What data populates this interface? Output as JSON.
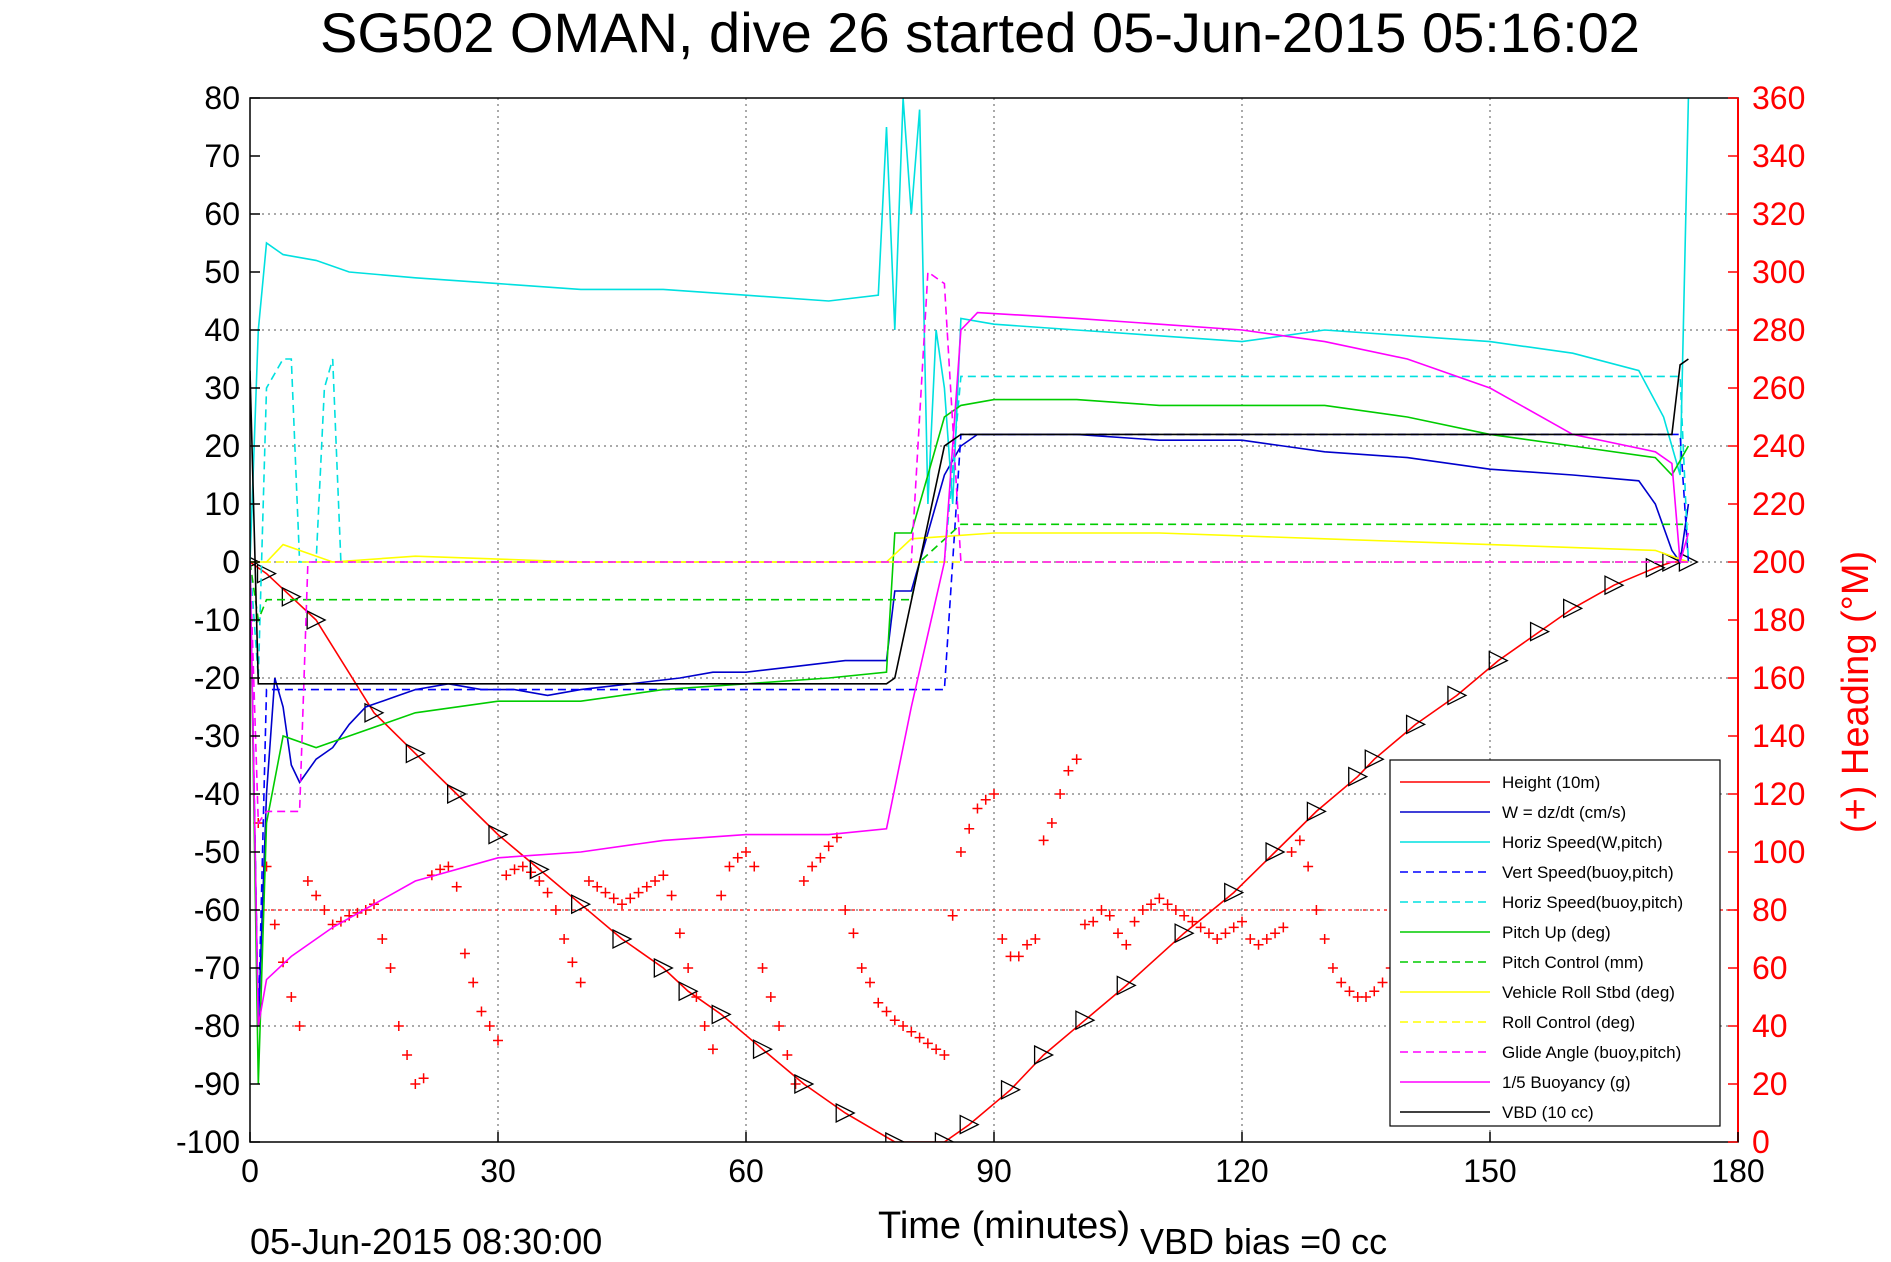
{
  "chart_data": {
    "type": "line",
    "title": "SG502 OMAN, dive 26 started 05-Jun-2015 05:16:02",
    "xlabel": "Time (minutes)",
    "ylabel_right": "(+) Heading (°M)",
    "footer_left": "05-Jun-2015 08:30:00",
    "footer_right": "VBD bias =0 cc",
    "xlim": [
      0,
      180
    ],
    "ylim": [
      -100,
      80
    ],
    "y2lim": [
      0,
      360
    ],
    "x_ticks": [
      "0",
      "30",
      "60",
      "90",
      "120",
      "150",
      "180"
    ],
    "y_ticks": [
      "-100",
      "-90",
      "-80",
      "-70",
      "-60",
      "-50",
      "-40",
      "-30",
      "-20",
      "-10",
      "0",
      "10",
      "20",
      "30",
      "40",
      "50",
      "60",
      "70",
      "80"
    ],
    "y2_ticks": [
      "0",
      "20",
      "40",
      "60",
      "80",
      "100",
      "120",
      "140",
      "160",
      "180",
      "200",
      "220",
      "240",
      "260",
      "280",
      "300",
      "320",
      "340",
      "360"
    ],
    "grid": true,
    "legend_position": "bottom-right",
    "series": [
      {
        "name": "Height (10m)",
        "color": "#ff0000",
        "style": "solid",
        "marker": "triangle",
        "x": [
          0,
          2,
          5,
          8,
          15,
          20,
          25,
          30,
          35,
          40,
          45,
          50,
          53,
          57,
          62,
          67,
          72,
          78,
          84,
          87,
          92,
          96,
          101,
          106,
          113,
          119,
          124,
          129,
          134,
          136,
          141,
          146,
          151,
          156,
          160,
          165,
          170,
          172,
          174
        ],
        "y": [
          0,
          -2,
          -6,
          -10,
          -26,
          -33,
          -40,
          -47,
          -53,
          -59,
          -65,
          -70,
          -74,
          -78,
          -84,
          -90,
          -95,
          -100,
          -100,
          -97,
          -91,
          -85,
          -79,
          -73,
          -64,
          -57,
          -50,
          -43,
          -37,
          -34,
          -28,
          -23,
          -17,
          -12,
          -8,
          -4,
          -1,
          0,
          0
        ]
      },
      {
        "name": "W = dz/dt (cm/s)",
        "color": "#0000cc",
        "style": "solid",
        "x": [
          0,
          1,
          2,
          3,
          4,
          5,
          6,
          8,
          10,
          12,
          14,
          16,
          18,
          20,
          24,
          28,
          32,
          36,
          40,
          46,
          52,
          56,
          60,
          66,
          72,
          77,
          78,
          80,
          82,
          84,
          86,
          88,
          95,
          100,
          110,
          120,
          125,
          130,
          140,
          150,
          160,
          168,
          170,
          172,
          173,
          174
        ],
        "y": [
          0,
          -80,
          -40,
          -20,
          -25,
          -35,
          -38,
          -34,
          -32,
          -28,
          -25,
          -24,
          -23,
          -22,
          -21,
          -22,
          -22,
          -23,
          -22,
          -21,
          -20,
          -19,
          -19,
          -18,
          -17,
          -17,
          -5,
          -5,
          5,
          15,
          20,
          22,
          22,
          22,
          21,
          21,
          20,
          19,
          18,
          16,
          15,
          14,
          10,
          2,
          0,
          10
        ]
      },
      {
        "name": "Horiz Speed(W,pitch)",
        "color": "#00e0e0",
        "style": "solid",
        "x": [
          0,
          1,
          2,
          4,
          8,
          12,
          20,
          30,
          40,
          50,
          60,
          70,
          76,
          77,
          78,
          79,
          80,
          81,
          82,
          83,
          84,
          85,
          86,
          90,
          100,
          110,
          120,
          130,
          140,
          150,
          160,
          168,
          171,
          173,
          174
        ],
        "y": [
          0,
          40,
          55,
          53,
          52,
          50,
          49,
          48,
          47,
          47,
          46,
          45,
          46,
          75,
          40,
          80,
          60,
          78,
          10,
          40,
          30,
          10,
          42,
          41,
          40,
          39,
          38,
          40,
          39,
          38,
          36,
          33,
          25,
          15,
          80
        ]
      },
      {
        "name": "Vert Speed(buoy,pitch)",
        "color": "#0000ff",
        "style": "dashed",
        "x": [
          0,
          1,
          2,
          3,
          84,
          86,
          173,
          174
        ],
        "y": [
          0,
          -80,
          -22,
          -22,
          -22,
          22,
          22,
          0
        ]
      },
      {
        "name": "Horiz Speed(buoy,pitch)",
        "color": "#00e0e0",
        "style": "dashed",
        "x": [
          0,
          1,
          2,
          4,
          5,
          6,
          8,
          9,
          10,
          11,
          12,
          14,
          84,
          86,
          173,
          174
        ],
        "y": [
          0,
          -20,
          30,
          35,
          35,
          0,
          0,
          30,
          35,
          0,
          0,
          0,
          0,
          32,
          32,
          0
        ]
      },
      {
        "name": "Pitch Up (deg)",
        "color": "#00cc00",
        "style": "solid",
        "x": [
          0,
          1,
          2,
          4,
          8,
          12,
          16,
          20,
          30,
          40,
          50,
          60,
          70,
          77,
          78,
          80,
          82,
          84,
          86,
          90,
          100,
          110,
          120,
          130,
          140,
          150,
          160,
          170,
          172,
          174
        ],
        "y": [
          0,
          -90,
          -45,
          -30,
          -32,
          -30,
          -28,
          -26,
          -24,
          -24,
          -22,
          -21,
          -20,
          -19,
          5,
          5,
          15,
          25,
          27,
          28,
          28,
          27,
          27,
          27,
          25,
          22,
          20,
          18,
          15,
          20
        ]
      },
      {
        "name": "Pitch Control (mm)",
        "color": "#00cc00",
        "style": "dashed",
        "x": [
          0,
          1,
          2,
          80,
          81,
          86,
          174
        ],
        "y": [
          0,
          -10,
          -6.5,
          -6.5,
          0,
          6.5,
          6.5
        ]
      },
      {
        "name": "Vehicle Roll Stbd (deg)",
        "color": "#ffff00",
        "style": "solid",
        "x": [
          0,
          2,
          4,
          10,
          20,
          40,
          60,
          77,
          80,
          90,
          110,
          130,
          150,
          170,
          174
        ],
        "y": [
          0,
          0,
          3,
          0,
          1,
          0,
          0,
          0,
          4,
          5,
          5,
          4,
          3,
          2,
          0
        ]
      },
      {
        "name": "Roll Control (deg)",
        "color": "#ffff00",
        "style": "dashed",
        "x": [
          0,
          174
        ],
        "y": [
          0,
          0
        ]
      },
      {
        "name": "Glide Angle (buoy,pitch)",
        "color": "#ff00ff",
        "style": "dashed",
        "x": [
          0,
          1,
          2,
          6,
          7,
          8,
          12,
          13,
          80,
          82,
          84,
          86,
          174
        ],
        "y": [
          0,
          -45,
          -43,
          -43,
          0,
          0,
          0,
          0,
          0,
          50,
          48,
          0,
          0
        ]
      },
      {
        "name": "1/5 Buoyancy (g)",
        "color": "#ff00ff",
        "style": "solid",
        "x": [
          0,
          1,
          2,
          5,
          10,
          15,
          20,
          30,
          40,
          50,
          60,
          70,
          77,
          80,
          84,
          86,
          88,
          100,
          110,
          120,
          130,
          140,
          150,
          160,
          170,
          172,
          173,
          174
        ],
        "y": [
          0,
          -80,
          -72,
          -68,
          -63,
          -59,
          -55,
          -51,
          -50,
          -48,
          -47,
          -47,
          -46,
          -25,
          0,
          40,
          43,
          42,
          41,
          40,
          38,
          35,
          30,
          22,
          19,
          17,
          0,
          5
        ]
      },
      {
        "name": "VBD (10 cc)",
        "color": "#000000",
        "style": "solid",
        "x": [
          0,
          1,
          2,
          77,
          78,
          84,
          86,
          172,
          173,
          174
        ],
        "y": [
          33,
          -21,
          -21,
          -21,
          -20,
          20,
          22,
          22,
          34,
          35
        ]
      }
    ],
    "heading": {
      "name": "Heading (°M)",
      "color": "#ff0000",
      "marker": "plus",
      "reference": 80,
      "x": [
        1,
        2,
        3,
        4,
        5,
        6,
        7,
        8,
        9,
        10,
        11,
        12,
        13,
        14,
        15,
        16,
        17,
        18,
        19,
        20,
        21,
        22,
        23,
        24,
        25,
        26,
        27,
        28,
        29,
        30,
        31,
        32,
        33,
        34,
        35,
        36,
        37,
        38,
        39,
        40,
        41,
        42,
        43,
        44,
        45,
        46,
        47,
        48,
        49,
        50,
        51,
        52,
        53,
        54,
        55,
        56,
        57,
        58,
        59,
        60,
        61,
        62,
        63,
        64,
        65,
        66,
        67,
        68,
        69,
        70,
        71,
        72,
        73,
        74,
        75,
        76,
        77,
        78,
        79,
        80,
        81,
        82,
        83,
        84,
        85,
        86,
        87,
        88,
        89,
        90,
        91,
        92,
        93,
        94,
        95,
        96,
        97,
        98,
        99,
        100,
        101,
        102,
        103,
        104,
        105,
        106,
        107,
        108,
        109,
        110,
        111,
        112,
        113,
        114,
        115,
        116,
        117,
        118,
        119,
        120,
        121,
        122,
        123,
        124,
        125,
        126,
        127,
        128,
        129,
        130,
        131,
        132,
        133,
        134,
        135,
        136,
        137,
        138,
        139,
        140
      ],
      "y": [
        110,
        95,
        75,
        62,
        50,
        40,
        90,
        85,
        80,
        75,
        76,
        78,
        79,
        80,
        82,
        70,
        60,
        40,
        30,
        20,
        22,
        92,
        94,
        95,
        88,
        65,
        55,
        45,
        40,
        35,
        92,
        94,
        95,
        93,
        90,
        86,
        80,
        70,
        62,
        55,
        90,
        88,
        86,
        84,
        82,
        84,
        86,
        88,
        90,
        92,
        85,
        72,
        60,
        50,
        40,
        32,
        85,
        95,
        98,
        100,
        95,
        60,
        50,
        40,
        30,
        20,
        90,
        95,
        98,
        102,
        105,
        80,
        72,
        60,
        55,
        48,
        45,
        42,
        40,
        38,
        36,
        34,
        32,
        30,
        78,
        100,
        108,
        115,
        118,
        120,
        70,
        64,
        64,
        68,
        70,
        104,
        110,
        120,
        128,
        132,
        75,
        76,
        80,
        78,
        72,
        68,
        76,
        80,
        82,
        84,
        82,
        80,
        78,
        76,
        74,
        72,
        70,
        72,
        74,
        76,
        70,
        68,
        70,
        72,
        74,
        100,
        104,
        95,
        80,
        70,
        60,
        55,
        52,
        50,
        50,
        52,
        55,
        60,
        62,
        65
      ]
    }
  }
}
